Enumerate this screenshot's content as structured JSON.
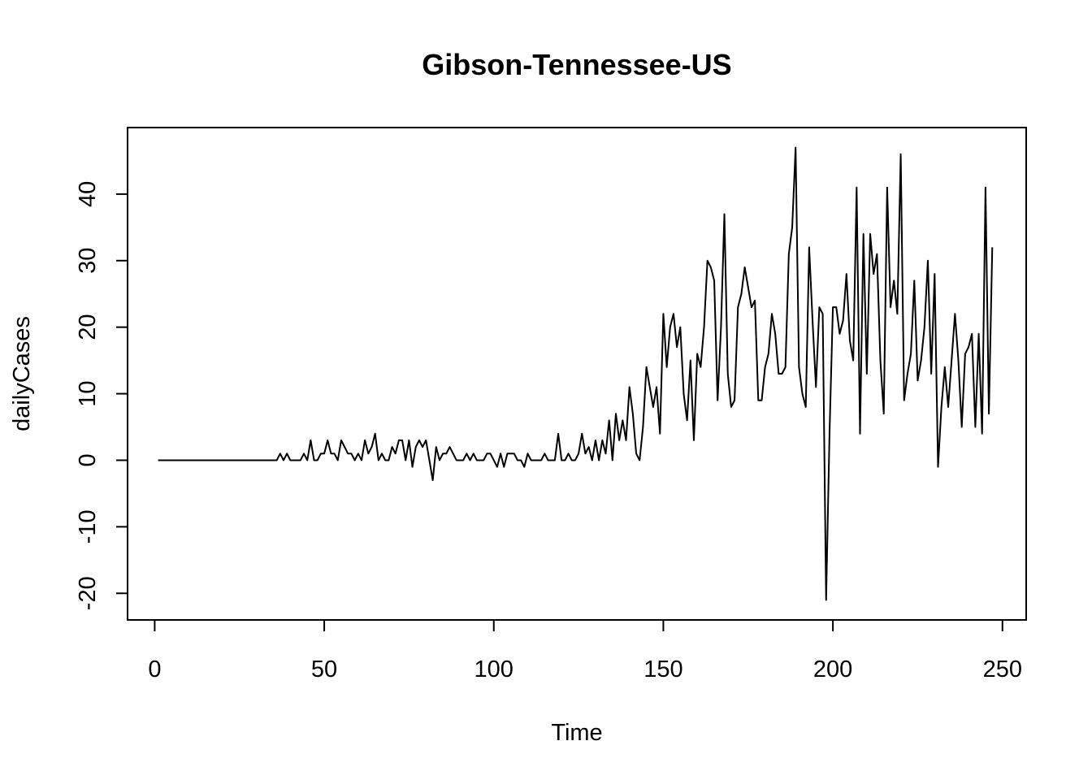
{
  "chart_data": {
    "type": "line",
    "title": "Gibson-Tennessee-US",
    "xlabel": "Time",
    "ylabel": "dailyCases",
    "xlim": [
      -8,
      257
    ],
    "ylim": [
      -24,
      50
    ],
    "xticks": [
      0,
      50,
      100,
      150,
      200,
      250
    ],
    "yticks": [
      -20,
      -10,
      0,
      10,
      20,
      30,
      40
    ],
    "grid": false,
    "legend": "none",
    "series": [
      {
        "color": "#000000",
        "x_start": 1,
        "values": [
          0,
          0,
          0,
          0,
          0,
          0,
          0,
          0,
          0,
          0,
          0,
          0,
          0,
          0,
          0,
          0,
          0,
          0,
          0,
          0,
          0,
          0,
          0,
          0,
          0,
          0,
          0,
          0,
          0,
          0,
          0,
          0,
          0,
          0,
          0,
          0,
          1,
          0,
          1,
          0,
          0,
          0,
          0,
          1,
          0,
          3,
          0,
          0,
          1,
          1,
          3,
          1,
          1,
          0,
          3,
          2,
          1,
          1,
          0,
          1,
          0,
          3,
          1,
          2,
          4,
          0,
          1,
          0,
          0,
          2,
          1,
          3,
          3,
          0,
          3,
          -1,
          2,
          3,
          2,
          3,
          0,
          -3,
          2,
          0,
          1,
          1,
          2,
          1,
          0,
          0,
          0,
          1,
          0,
          1,
          0,
          0,
          0,
          1,
          1,
          0,
          -1,
          1,
          -1,
          1,
          1,
          1,
          0,
          0,
          -1,
          1,
          0,
          0,
          0,
          0,
          1,
          0,
          0,
          0,
          4,
          0,
          0,
          1,
          0,
          0,
          1,
          4,
          1,
          2,
          0,
          3,
          0,
          3,
          1,
          6,
          0,
          7,
          3,
          6,
          3,
          11,
          7,
          1,
          0,
          5,
          14,
          11,
          8,
          11,
          4,
          22,
          14,
          20,
          22,
          17,
          20,
          10,
          6,
          15,
          3,
          16,
          14,
          20,
          30,
          29,
          27,
          9,
          20,
          37,
          13,
          8,
          9,
          23,
          25,
          29,
          26,
          23,
          24,
          9,
          9,
          14,
          16,
          22,
          19,
          13,
          13,
          14,
          31,
          35,
          47,
          14,
          10,
          8,
          32,
          21,
          11,
          23,
          22,
          -21,
          4,
          23,
          23,
          19,
          21,
          28,
          18,
          15,
          41,
          4,
          34,
          13,
          34,
          28,
          31,
          15,
          7,
          41,
          23,
          27,
          22,
          46,
          9,
          13,
          16,
          27,
          12,
          15,
          20,
          30,
          13,
          28,
          -1,
          8,
          14,
          8,
          15,
          22,
          15,
          5,
          16,
          17,
          19,
          5,
          19,
          4,
          41,
          7,
          32
        ]
      }
    ]
  }
}
